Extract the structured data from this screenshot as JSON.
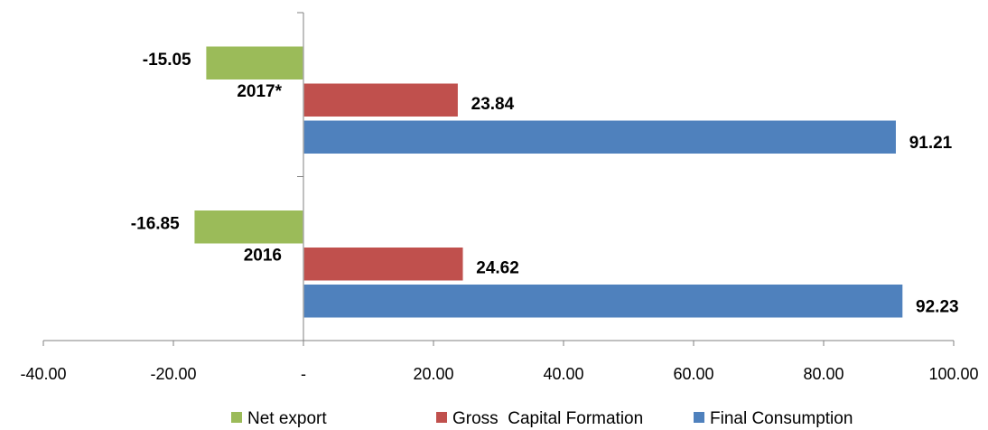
{
  "chart_data": {
    "type": "bar",
    "orientation": "horizontal",
    "categories": [
      "2016",
      "2017*"
    ],
    "series": [
      {
        "name": "Net export",
        "color": "#9bbb59",
        "values": [
          -16.85,
          -15.05
        ],
        "labels": [
          "-16.85",
          "-15.05"
        ]
      },
      {
        "name": "Gross  Capital Formation",
        "color": "#c0504d",
        "values": [
          24.62,
          23.84
        ],
        "labels": [
          "24.62",
          "23.84"
        ]
      },
      {
        "name": "Final Consumption",
        "color": "#4f81bd",
        "values": [
          92.23,
          91.21
        ],
        "labels": [
          "92.23",
          "91.21"
        ]
      }
    ],
    "xlim": [
      -40,
      100
    ],
    "xticks": [
      -40,
      -20,
      0,
      20,
      40,
      60,
      80,
      100
    ],
    "xtick_labels": [
      "-40.00",
      "-20.00",
      "-",
      "20.00",
      "40.00",
      "60.00",
      "80.00",
      "100.00"
    ],
    "grid": false,
    "legend_position": "bottom"
  }
}
